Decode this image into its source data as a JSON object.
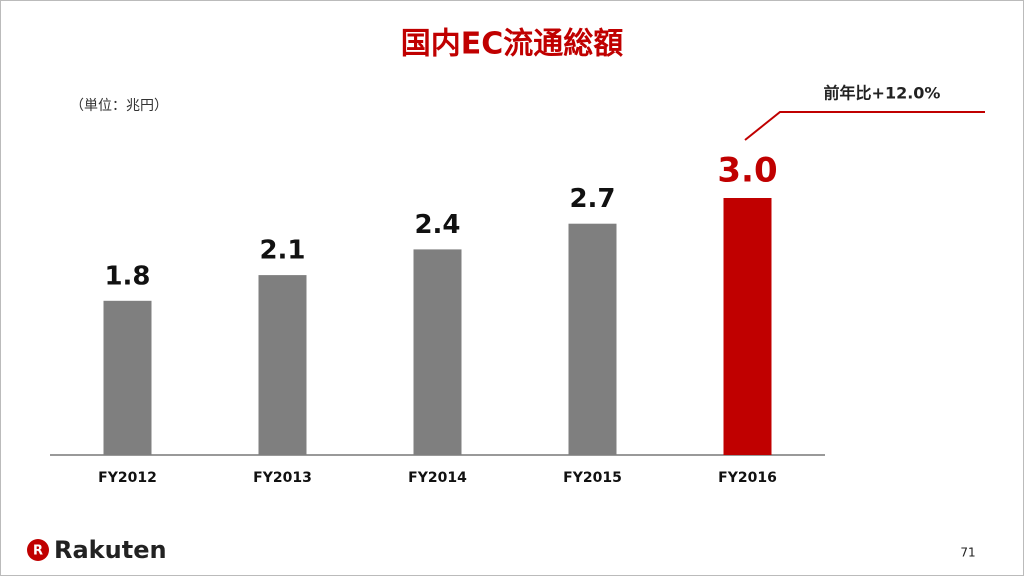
{
  "chart_data": {
    "type": "bar",
    "title": "国内EC流通総額",
    "subtitle": "（単位：兆円）",
    "annotation": "前年比+12.0%",
    "categories": [
      "FY2012",
      "FY2013",
      "FY2014",
      "FY2015",
      "FY2016"
    ],
    "values": [
      1.8,
      2.1,
      2.4,
      2.7,
      3.0
    ],
    "value_labels": [
      "1.8",
      "2.1",
      "2.4",
      "2.7",
      "3.0"
    ],
    "colors": [
      "#7f7f7f",
      "#7f7f7f",
      "#7f7f7f",
      "#7f7f7f",
      "#c00000"
    ]
  },
  "slide": {
    "logo": "Rakuten",
    "page": "71"
  }
}
